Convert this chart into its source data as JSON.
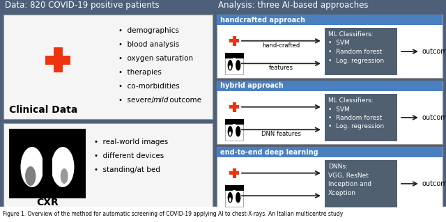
{
  "bg_color": "#4e6079",
  "panel_bg": "#f5f5f5",
  "white": "#ffffff",
  "dark_blue_box": "#506070",
  "blue_header": "#4a80c0",
  "red_cross": "#ee3311",
  "arrow_color": "#333333",
  "text_dark": "#111111",
  "text_white": "#ffffff",
  "title_left": "Data: 820 COVID-19 positive patients",
  "title_right": "Analysis: three AI-based approaches",
  "clinical_title": "Clinical Data",
  "cxr_title": "CXR",
  "clinical_bullets": [
    "demographics",
    "blood analysis",
    "oxygen saturation",
    "therapies",
    "co-morbidities"
  ],
  "cxr_bullets": [
    "real-world images",
    "different devices",
    "standing/at bed"
  ],
  "approach1_header": "handcrafted approach",
  "approach1_label1": "hand-crafted",
  "approach1_label2": "features",
  "approach1_box": "ML Classifiers:\n•  SVM\n•  Random forest\n•  Log. regression",
  "approach2_header": "hybrid approach",
  "approach2_label": "DNN features",
  "approach2_box": "ML Classifiers:\n•  SVM\n•  Random forest\n•  Log. regression",
  "approach3_header": "end-to-end deep learning",
  "approach3_box": "DNNs:\nVGG, ResNet\nInception and\nXception",
  "outcome_text": "outcome"
}
